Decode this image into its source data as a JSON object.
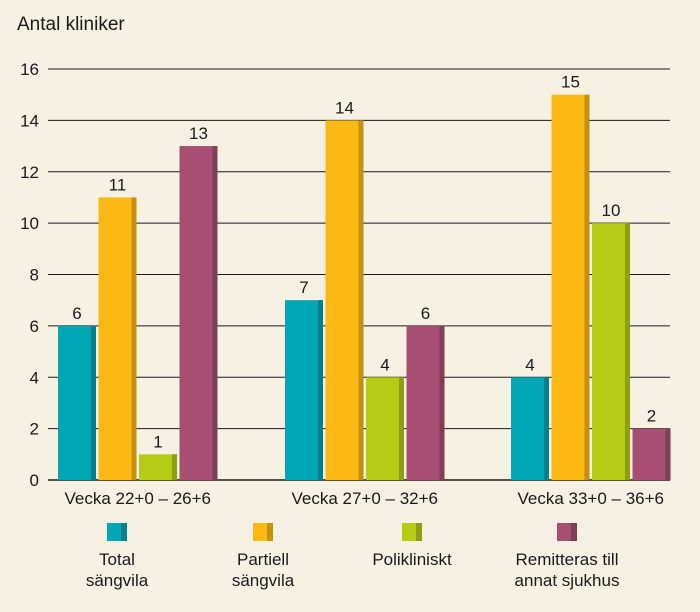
{
  "chart_data": {
    "type": "bar",
    "ylabel": "Antal kliniker",
    "ylim": [
      0,
      16
    ],
    "yticks": [
      0,
      2,
      4,
      6,
      8,
      10,
      12,
      14,
      16
    ],
    "grid": true,
    "legend_position": "bottom",
    "categories": [
      "Vecka 22+0 – 26+6",
      "Vecka 27+0 – 32+6",
      "Vecka 33+0 – 36+6"
    ],
    "series": [
      {
        "name": "Total\nsängvila",
        "color": "#00a6b3",
        "values": [
          6,
          7,
          4
        ]
      },
      {
        "name": "Partiell\nsängvila",
        "color": "#fdb913",
        "values": [
          11,
          14,
          15
        ]
      },
      {
        "name": "Polikliniskt",
        "color": "#b4cc16",
        "values": [
          1,
          4,
          10
        ]
      },
      {
        "name": "Remitteras till\nannat sjukhus",
        "color": "#a64f72",
        "values": [
          13,
          6,
          2
        ]
      }
    ]
  }
}
